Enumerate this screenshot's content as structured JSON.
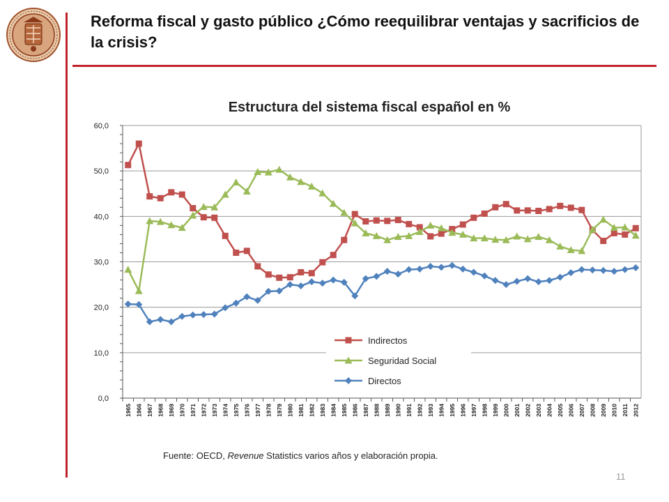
{
  "slide": {
    "title": "Reforma fiscal y gasto público ¿Cómo reequilibrar ventajas y sacrificios de la crisis?",
    "source_prefix": "Fuente: OECD, ",
    "source_italic": "Revenue",
    "source_suffix": " Statistics varios años y elaboración propia.",
    "page_number": "11",
    "logo_icon": "university-seal-icon",
    "accent_color": "#c0232b"
  },
  "chart_data": {
    "type": "line",
    "title": "Estructura del sistema fiscal español en %",
    "xlabel": "",
    "ylabel": "",
    "ylim": [
      0,
      60
    ],
    "yticks": [
      "0,0",
      "10,0",
      "20,0",
      "30,0",
      "40,0",
      "50,0",
      "60,0"
    ],
    "grid": true,
    "legend_position": "bottom-center",
    "categories": [
      "1965",
      "1966",
      "1967",
      "1968",
      "1969",
      "1970",
      "1971",
      "1972",
      "1973",
      "1974",
      "1975",
      "1976",
      "1977",
      "1978",
      "1979",
      "1980",
      "1981",
      "1982",
      "1983",
      "1984",
      "1985",
      "1986",
      "1987",
      "1988",
      "1989",
      "1990",
      "1991",
      "1992",
      "1993",
      "1994",
      "1995",
      "1996",
      "1997",
      "1998",
      "1999",
      "2000",
      "2001",
      "2002",
      "2003",
      "2004",
      "2005",
      "2006",
      "2007",
      "2008",
      "2009",
      "2010",
      "2011",
      "2012"
    ],
    "series": [
      {
        "name": "Indirectos",
        "color": "#c0504d",
        "marker": "square",
        "values": [
          51.3,
          56.0,
          44.4,
          44.0,
          45.3,
          44.8,
          41.8,
          39.8,
          39.7,
          35.7,
          32.0,
          32.4,
          29.0,
          27.2,
          26.5,
          26.6,
          27.7,
          27.5,
          29.9,
          31.5,
          34.8,
          40.5,
          38.9,
          39.1,
          39.0,
          39.2,
          38.3,
          37.6,
          35.6,
          36.2,
          37.2,
          38.2,
          39.7,
          40.6,
          42.0,
          42.7,
          41.3,
          41.3,
          41.2,
          41.6,
          42.3,
          41.9,
          41.4,
          37.0,
          34.6,
          36.3,
          36.0,
          37.4
        ]
      },
      {
        "name": "Seguridad Social",
        "color": "#9bbb59",
        "marker": "triangle",
        "values": [
          28.3,
          23.6,
          39.0,
          38.8,
          38.1,
          37.5,
          40.2,
          42.1,
          42.0,
          44.8,
          47.5,
          45.5,
          49.8,
          49.7,
          50.3,
          48.6,
          47.6,
          46.6,
          45.1,
          42.8,
          40.8,
          38.5,
          36.3,
          35.7,
          34.8,
          35.5,
          35.7,
          36.6,
          38.0,
          37.4,
          36.4,
          36.0,
          35.2,
          35.2,
          34.9,
          34.8,
          35.6,
          35.0,
          35.5,
          34.8,
          33.4,
          32.6,
          32.4,
          37.1,
          39.3,
          37.5,
          37.6,
          35.8
        ]
      },
      {
        "name": "Directos",
        "color": "#4f81bd",
        "marker": "diamond",
        "values": [
          20.7,
          20.6,
          16.8,
          17.3,
          16.8,
          18.0,
          18.3,
          18.4,
          18.5,
          19.9,
          20.9,
          22.3,
          21.5,
          23.5,
          23.6,
          25.0,
          24.7,
          25.6,
          25.3,
          26.0,
          25.5,
          22.5,
          26.3,
          26.8,
          27.9,
          27.3,
          28.3,
          28.4,
          29.0,
          28.8,
          29.2,
          28.4,
          27.7,
          26.9,
          25.9,
          25.0,
          25.7,
          26.3,
          25.6,
          25.9,
          26.6,
          27.6,
          28.3,
          28.2,
          28.1,
          27.9,
          28.3,
          28.7
        ]
      }
    ]
  }
}
